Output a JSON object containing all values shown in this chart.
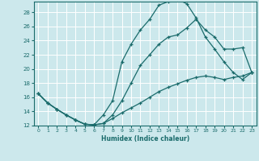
{
  "xlabel": "Humidex (Indice chaleur)",
  "xlim": [
    -0.5,
    23.5
  ],
  "ylim": [
    12,
    29.5
  ],
  "xticks": [
    0,
    1,
    2,
    3,
    4,
    5,
    6,
    7,
    8,
    9,
    10,
    11,
    12,
    13,
    14,
    15,
    16,
    17,
    18,
    19,
    20,
    21,
    22,
    23
  ],
  "yticks": [
    12,
    14,
    16,
    18,
    20,
    22,
    24,
    26,
    28
  ],
  "bg_color": "#cce8ec",
  "line_color": "#1a6b6b",
  "grid_color": "#ffffff",
  "line1_x": [
    0,
    1,
    2,
    3,
    4,
    5,
    6,
    7,
    8,
    9,
    10,
    11,
    12,
    13,
    14,
    15,
    16,
    17,
    18,
    19,
    20,
    21,
    22,
    23
  ],
  "line1_y": [
    16.5,
    15.2,
    14.3,
    13.5,
    12.8,
    12.2,
    12.1,
    13.5,
    15.5,
    21.0,
    23.5,
    25.5,
    27.0,
    29.0,
    29.5,
    29.8,
    29.2,
    27.2,
    24.5,
    22.8,
    21.0,
    19.5,
    18.5,
    19.5
  ],
  "line2_x": [
    0,
    1,
    2,
    3,
    4,
    5,
    6,
    7,
    8,
    9,
    10,
    11,
    12,
    13,
    14,
    15,
    16,
    17,
    18,
    19,
    20,
    21,
    22,
    23
  ],
  "line2_y": [
    16.5,
    15.2,
    14.3,
    13.5,
    12.8,
    12.2,
    12.1,
    12.3,
    13.0,
    13.8,
    14.5,
    15.2,
    16.0,
    16.8,
    17.4,
    17.9,
    18.4,
    18.8,
    19.0,
    18.8,
    18.5,
    18.8,
    19.0,
    19.5
  ],
  "line3_x": [
    0,
    1,
    2,
    3,
    4,
    5,
    6,
    7,
    8,
    9,
    10,
    11,
    12,
    13,
    14,
    15,
    16,
    17,
    18,
    19,
    20,
    21,
    22,
    23
  ],
  "line3_y": [
    16.5,
    15.2,
    14.3,
    13.5,
    12.8,
    12.2,
    12.1,
    12.3,
    13.5,
    15.5,
    18.0,
    20.5,
    22.0,
    23.5,
    24.5,
    24.8,
    25.8,
    27.0,
    25.5,
    24.5,
    22.8,
    22.8,
    23.0,
    19.5
  ]
}
